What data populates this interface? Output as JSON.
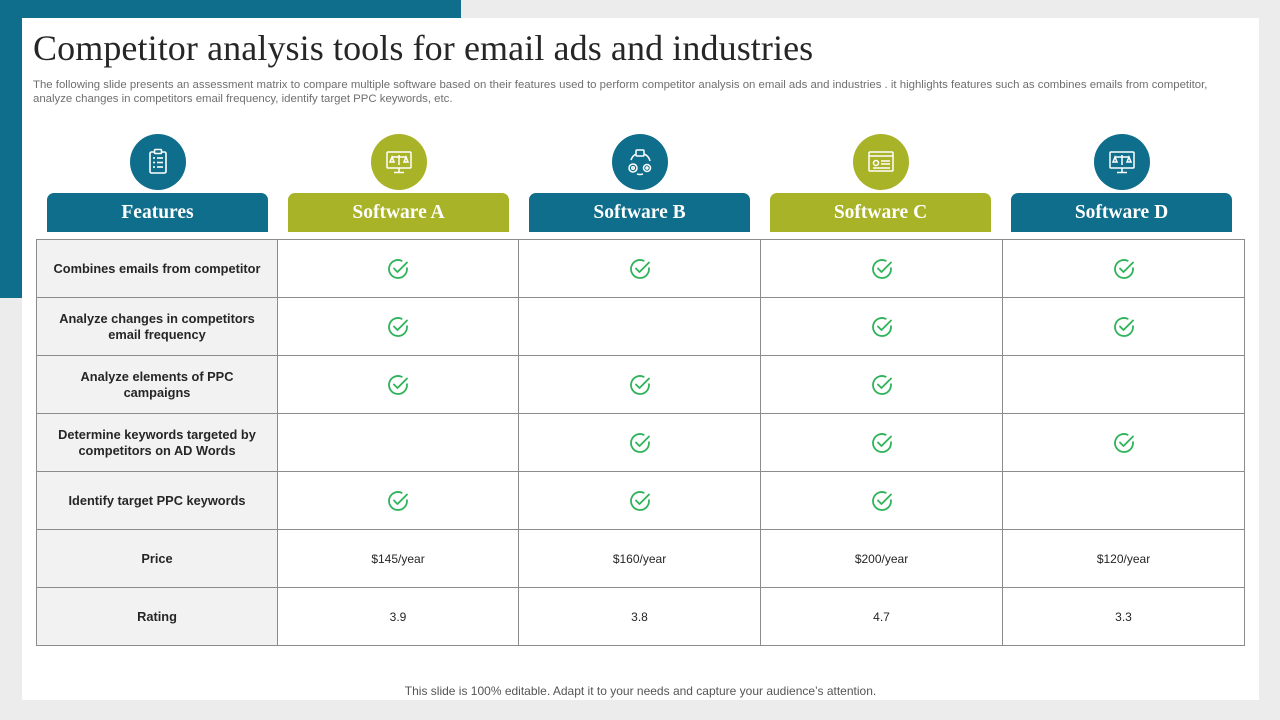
{
  "slide": {
    "title": "Competitor analysis tools for email ads and industries",
    "subtitle": "The following slide presents an assessment matrix to compare multiple software based on their features used to perform competitor analysis on email ads and industries . it highlights features such as combines emails from competitor, analyze changes in competitors email frequency, identify target PPC keywords, etc.",
    "footer": "This slide is 100% editable. Adapt it to your needs and capture your audience’s attention."
  },
  "colors": {
    "teal": "#0f6e8c",
    "olive": "#a9b327",
    "check": "#2eb35a"
  },
  "columns": [
    {
      "label": "Features",
      "color": "teal",
      "icon": "clipboard-checklist-icon"
    },
    {
      "label": "Software A",
      "color": "olive",
      "icon": "monitor-scales-icon"
    },
    {
      "label": "Software B",
      "color": "teal",
      "icon": "gear-cycle-icon"
    },
    {
      "label": "Software C",
      "color": "olive",
      "icon": "browser-window-icon"
    },
    {
      "label": "Software D",
      "color": "teal",
      "icon": "monitor-scales-icon"
    }
  ],
  "rows": [
    {
      "feature": "Combines emails from competitor",
      "values": [
        true,
        true,
        true,
        true
      ]
    },
    {
      "feature": "Analyze changes in competitors email frequency",
      "values": [
        true,
        false,
        true,
        true
      ]
    },
    {
      "feature": "Analyze elements of PPC campaigns",
      "values": [
        true,
        true,
        true,
        false
      ]
    },
    {
      "feature": "Determine keywords targeted by competitors on AD Words",
      "values": [
        false,
        true,
        true,
        true
      ]
    },
    {
      "feature": "Identify target PPC keywords",
      "values": [
        true,
        true,
        true,
        false
      ]
    },
    {
      "feature": "Price",
      "values": [
        "$145/year",
        "$160/year",
        "$200/year",
        "$120/year"
      ]
    },
    {
      "feature": "Rating",
      "values": [
        "3.9",
        "3.8",
        "4.7",
        "3.3"
      ]
    }
  ]
}
